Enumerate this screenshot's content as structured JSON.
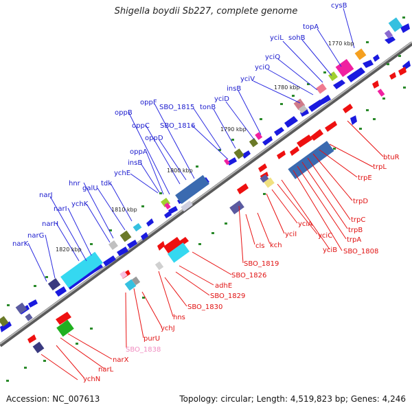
{
  "title": "Shigella boydii Sb227, complete genome",
  "footer": {
    "accession": "Accession: NC_007613",
    "summary": "Topology: circular; Length: 4,519,823 bp; Genes: 4,246"
  },
  "ticks": [
    "1770 kbp",
    "1780 kbp",
    "1790 kbp",
    "1800 kbp",
    "1810 kbp",
    "1820 kbp"
  ],
  "labels_top": [
    "cysB",
    "topA",
    "sohB",
    "yciL",
    "yciQ",
    "yciO",
    "yciV",
    "insB",
    "yciD",
    "tonB",
    "SBO_1816",
    "SBO_1815",
    "oppF",
    "oppB",
    "oppC",
    "oppD",
    "oppA",
    "insB",
    "ychE",
    "tdk",
    "galU",
    "hnr",
    "ychK",
    "narJ",
    "narI",
    "narH",
    "narG",
    "narK"
  ],
  "labels_bottom": [
    "btuR",
    "trpL",
    "trpE",
    "trpD",
    "trpC",
    "trpB",
    "trpA",
    "SBO_1808",
    "yciB",
    "yciC",
    "yciA",
    "yciI",
    "kch",
    "cls",
    "SBO_1819",
    "SBO_1826",
    "adhE",
    "SBO_1829",
    "SBO_1830",
    "hns",
    "ychJ",
    "purU",
    "SBO_1838",
    "narX",
    "narL",
    "ychN"
  ],
  "colors": {
    "top_label": "#1a1acd",
    "bottom_label": "#e01010",
    "pink_label": "#f08cc0",
    "backbone": "#7f7f7f",
    "forward_gene": "#1a1adf",
    "reverse_gene": "#ee1010",
    "dot": "#2a8a2a"
  }
}
